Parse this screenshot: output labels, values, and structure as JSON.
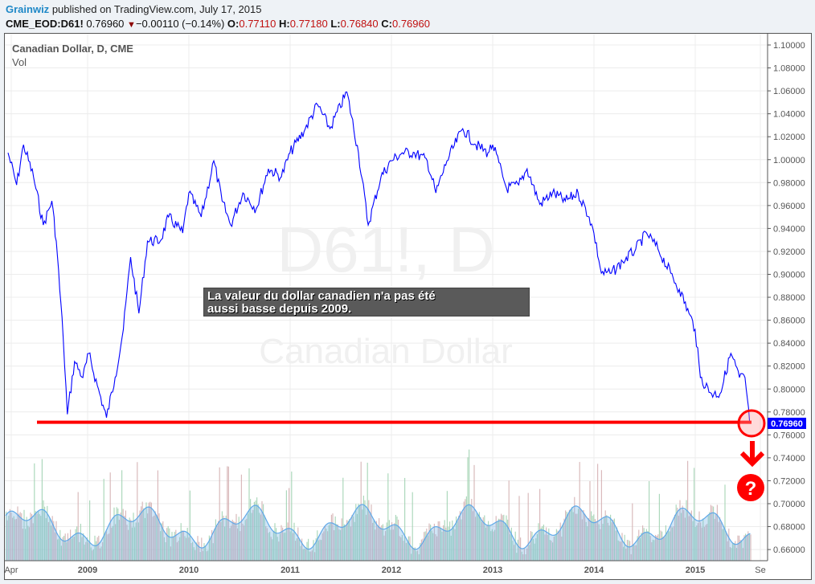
{
  "header": {
    "author": "Grainwiz",
    "published": "published on TradingView.com, July 17, 2015",
    "symbol": "CME_EOD:D61!",
    "last": "0.76960",
    "change": "−0.00110 (−0.14%)",
    "change_icon": "triangle-down-icon",
    "o_label": "O:",
    "o": "0.77110",
    "h_label": "H:",
    "h": "0.77180",
    "l_label": "L:",
    "l": "0.76840",
    "c_label": "C:",
    "c": "0.76960"
  },
  "legend": {
    "title": "Canadian Dollar, D, CME",
    "volume": "Vol"
  },
  "watermark": {
    "line1": "D61!, D",
    "line2": "Canadian Dollar"
  },
  "annotation": {
    "text_line1": "La valeur du dollar canadien n'a pas été",
    "text_line2": "aussi basse depuis 2009."
  },
  "colors": {
    "price_line": "#0000ff",
    "support_line": "#ff0000",
    "last_price_badge": "#0000ff",
    "volume_up": "#7fc99a",
    "volume_down": "#c9a0a0",
    "volume_ma": "#5fa8e8"
  },
  "chart_data": {
    "type": "line",
    "y_ticks": [
      "1.10000",
      "1.08000",
      "1.06000",
      "1.04000",
      "1.02000",
      "1.00000",
      "0.98000",
      "0.96000",
      "0.94000",
      "0.92000",
      "0.90000",
      "0.88000",
      "0.86000",
      "0.84000",
      "0.82000",
      "0.80000",
      "0.78000",
      "0.76000",
      "0.74000",
      "0.72000",
      "0.70000",
      "0.68000",
      "0.66000"
    ],
    "ylim": [
      0.65,
      1.11
    ],
    "x_ticks": [
      "Apr",
      "2009",
      "2010",
      "2011",
      "2012",
      "2013",
      "2014",
      "2015",
      "Se"
    ],
    "last_price_label": "0.76960",
    "support_level": 0.7696,
    "grid": true,
    "series": [
      {
        "x": [
          "2008-03-20",
          "2008-04-20",
          "2008-05-15",
          "2008-06-20",
          "2008-07-25",
          "2008-08-25",
          "2008-09-10",
          "2008-10-05",
          "2008-10-20",
          "2008-11-15",
          "2008-12-15",
          "2009-01-05",
          "2009-02-05",
          "2009-03-10",
          "2009-04-10",
          "2009-05-10",
          "2009-06-05",
          "2009-07-05",
          "2009-08-05",
          "2009-09-20",
          "2009-10-20",
          "2009-12-10",
          "2010-01-01",
          "2010-02-15",
          "2010-04-01",
          "2010-05-01",
          "2010-06-01",
          "2010-07-15",
          "2010-09-01",
          "2010-10-15",
          "2010-12-01",
          "2011-01-01",
          "2011-02-25",
          "2011-04-10",
          "2011-05-25",
          "2011-07-25",
          "2011-09-05",
          "2011-10-10",
          "2011-11-25",
          "2012-01-01",
          "2012-02-10",
          "2012-03-25",
          "2012-05-10",
          "2012-06-10",
          "2012-07-20",
          "2012-09-15",
          "2012-11-01",
          "2012-12-15",
          "2013-01-01",
          "2013-02-20",
          "2013-04-05",
          "2013-05-05",
          "2013-06-20",
          "2013-08-05",
          "2013-09-20",
          "2013-11-05",
          "2013-12-15",
          "2014-01-01",
          "2014-01-28",
          "2014-03-05",
          "2014-04-15",
          "2014-06-01",
          "2014-07-10",
          "2014-08-20",
          "2014-10-05",
          "2014-11-05",
          "2014-12-10",
          "2015-01-01",
          "2015-01-20",
          "2015-03-01",
          "2015-04-01",
          "2015-05-10",
          "2015-06-10",
          "2015-06-30",
          "2015-07-17"
        ],
        "y": [
          1.006,
          0.978,
          1.013,
          0.985,
          0.943,
          0.964,
          0.929,
          0.845,
          0.778,
          0.824,
          0.81,
          0.831,
          0.803,
          0.775,
          0.81,
          0.852,
          0.915,
          0.866,
          0.929,
          0.929,
          0.95,
          0.936,
          0.971,
          0.95,
          0.999,
          0.964,
          0.943,
          0.971,
          0.957,
          0.992,
          0.985,
          1.006,
          1.027,
          1.048,
          1.027,
          1.059,
          1.006,
          0.943,
          0.985,
          0.999,
          1.006,
          1.006,
          0.999,
          0.971,
          0.999,
          1.027,
          1.013,
          1.006,
          1.013,
          0.975,
          0.978,
          0.992,
          0.961,
          0.971,
          0.964,
          0.971,
          0.95,
          0.936,
          0.901,
          0.901,
          0.911,
          0.922,
          0.936,
          0.922,
          0.901,
          0.887,
          0.866,
          0.852,
          0.81,
          0.796,
          0.796,
          0.831,
          0.81,
          0.81,
          0.7696
        ]
      }
    ]
  }
}
